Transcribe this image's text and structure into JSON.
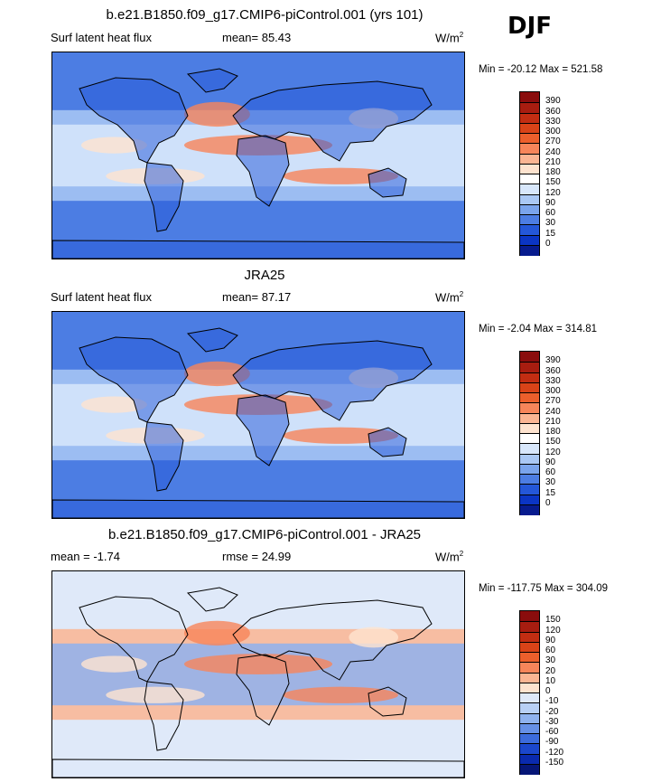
{
  "season": "DJF",
  "units_base": "W/m",
  "units_exp": "2",
  "panels": [
    {
      "id": "model",
      "title": "b.e21.B1850.f09_g17.CMIP6-piControl.001 (yrs 101)",
      "left_label": "Surf latent heat flux",
      "center_label": "mean=  85.43",
      "minmax": "Min = -20.12 Max = 521.58",
      "levels": [
        "390",
        "360",
        "330",
        "300",
        "270",
        "240",
        "210",
        "180",
        "150",
        "120",
        "90",
        "60",
        "30",
        "15",
        "0"
      ],
      "colors": [
        "#8a0d0d",
        "#a81d10",
        "#c22d12",
        "#d94318",
        "#ec5f2c",
        "#f7855a",
        "#fbb593",
        "#fee3cf",
        "#ffffff",
        "#d8e7fb",
        "#aac8f4",
        "#7aa4ec",
        "#4c7de3",
        "#2457d8",
        "#0b35c4",
        "#071b8e"
      ]
    },
    {
      "id": "obs",
      "title": "JRA25",
      "left_label": "Surf latent heat flux",
      "center_label": "mean=  87.17",
      "minmax": "Min =  -2.04 Max = 314.81",
      "levels": [
        "390",
        "360",
        "330",
        "300",
        "270",
        "240",
        "210",
        "180",
        "150",
        "120",
        "90",
        "60",
        "30",
        "15",
        "0"
      ],
      "colors": [
        "#8a0d0d",
        "#a81d10",
        "#c22d12",
        "#d94318",
        "#ec5f2c",
        "#f7855a",
        "#fbb593",
        "#fee3cf",
        "#ffffff",
        "#d8e7fb",
        "#aac8f4",
        "#7aa4ec",
        "#4c7de3",
        "#2457d8",
        "#0b35c4",
        "#071b8e"
      ]
    },
    {
      "id": "diff",
      "title": "b.e21.B1850.f09_g17.CMIP6-piControl.001 - JRA25",
      "left_label": "mean =  -1.74",
      "center_label": "rmse =  24.99",
      "minmax": "Min = -117.75 Max = 304.09",
      "levels": [
        "150",
        "120",
        "90",
        "60",
        "30",
        "20",
        "10",
        "0",
        "-10",
        "-20",
        "-30",
        "-60",
        "-90",
        "-120",
        "-150"
      ],
      "colors": [
        "#8a0d0d",
        "#a81d10",
        "#c22d12",
        "#d94318",
        "#ec5f2c",
        "#f7855a",
        "#fbb593",
        "#fee3cf",
        "#dfe9f9",
        "#b8d0f5",
        "#8fb2ee",
        "#6690e6",
        "#3c6bdb",
        "#1b47cc",
        "#0a2aae",
        "#061677"
      ]
    }
  ]
}
